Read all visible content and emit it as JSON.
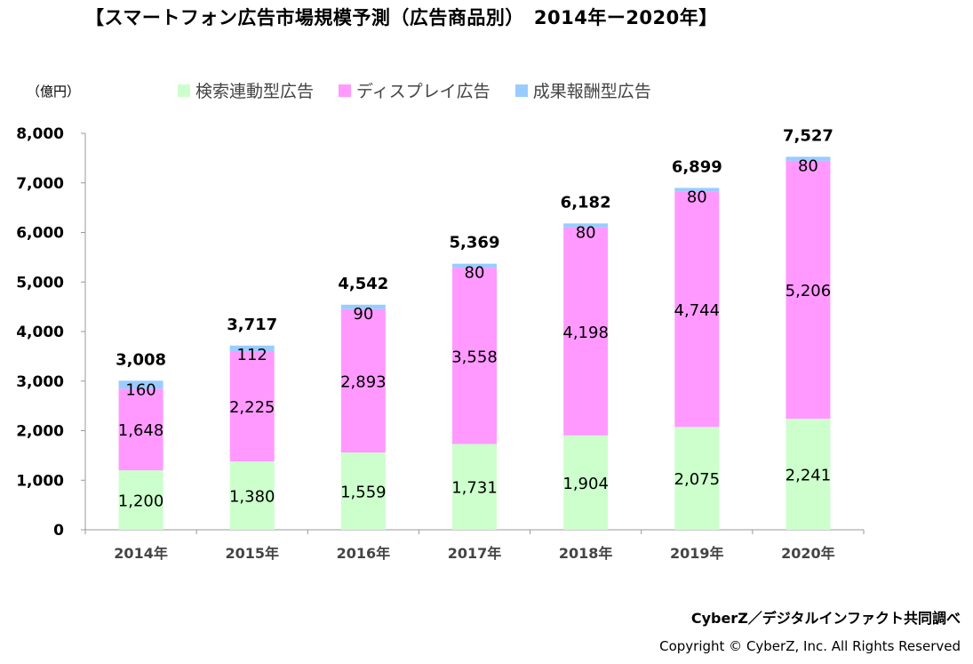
{
  "title": "【スマートフォン広告市場規模予測（広告商品別）　2014年ー2020年】",
  "unit": "（億円）",
  "source": "CyberZ／デジタルインファクト共同調べ",
  "copyright": "Copyright © CyberZ, Inc. All Rights Reserved",
  "colors": {
    "search": "#ccffcc",
    "display": "#ff99ff",
    "affiliate": "#99ccff",
    "axis": "#999999"
  },
  "legend": [
    {
      "label": "検索連動型広告",
      "color": "#ccffcc"
    },
    {
      "label": "ディスプレイ広告",
      "color": "#ff99ff"
    },
    {
      "label": "成果報酬型広告",
      "color": "#99ccff"
    }
  ],
  "chart_data": {
    "type": "bar",
    "stacked": true,
    "categories": [
      "2014年",
      "2015年",
      "2016年",
      "2017年",
      "2018年",
      "2019年",
      "2020年"
    ],
    "series": [
      {
        "name": "検索連動型広告",
        "values": [
          1200,
          1380,
          1559,
          1731,
          1904,
          2075,
          2241
        ],
        "labels": [
          "1,200",
          "1,380",
          "1,559",
          "1,731",
          "1,904",
          "2,075",
          "2,241"
        ]
      },
      {
        "name": "ディスプレイ広告",
        "values": [
          1648,
          2225,
          2893,
          3558,
          4198,
          4744,
          5206
        ],
        "labels": [
          "1,648",
          "2,225",
          "2,893",
          "3,558",
          "4,198",
          "4,744",
          "5,206"
        ]
      },
      {
        "name": "成果報酬型広告",
        "values": [
          160,
          112,
          90,
          80,
          80,
          80,
          80
        ],
        "labels": [
          "160",
          "112",
          "90",
          "80",
          "80",
          "80",
          "80"
        ]
      }
    ],
    "totals": [
      3008,
      3717,
      4542,
      5369,
      6182,
      6899,
      7527
    ],
    "total_labels": [
      "3,008",
      "3,717",
      "4,542",
      "5,369",
      "6,182",
      "6,899",
      "7,527"
    ],
    "ylim": [
      0,
      8000
    ],
    "yticks": [
      0,
      1000,
      2000,
      3000,
      4000,
      5000,
      6000,
      7000,
      8000
    ],
    "ytick_labels": [
      "0",
      "1,000",
      "2,000",
      "3,000",
      "4,000",
      "5,000",
      "6,000",
      "7,000",
      "8,000"
    ],
    "ylabel": "（億円）",
    "xlabel": "",
    "legend_position": "top"
  }
}
